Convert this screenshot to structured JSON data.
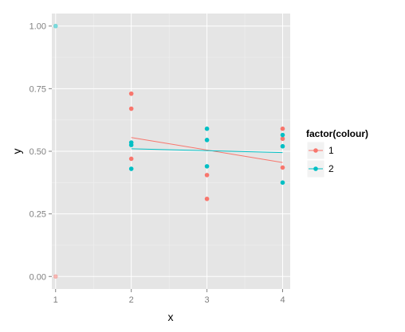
{
  "chart_data": {
    "type": "scatter",
    "xlabel": "x",
    "ylabel": "y",
    "xlim": [
      0.95,
      4.1
    ],
    "ylim": [
      -0.05,
      1.05
    ],
    "x_ticks": [
      1,
      2,
      3,
      4
    ],
    "x_tick_labels": [
      "1",
      "2",
      "3",
      "4"
    ],
    "y_ticks": [
      0,
      0.25,
      0.5,
      0.75,
      1
    ],
    "y_tick_labels": [
      "0.00",
      "0.25",
      "0.50",
      "0.75",
      "1.00"
    ],
    "grid": true,
    "panel_background": "#e5e5e5",
    "legend": {
      "title": "factor(colour)",
      "position": "right",
      "entries": [
        {
          "label": "1",
          "color": "#f8766d"
        },
        {
          "label": "2",
          "color": "#00bfc4"
        }
      ]
    },
    "series": [
      {
        "name": "1",
        "color": "#f8766d",
        "points": [
          {
            "x": 1,
            "y": 0.0,
            "alpha": 0.5
          },
          {
            "x": 2,
            "y": 0.73
          },
          {
            "x": 2,
            "y": 0.67
          },
          {
            "x": 2,
            "y": 0.47
          },
          {
            "x": 3,
            "y": 0.405
          },
          {
            "x": 3,
            "y": 0.31
          },
          {
            "x": 4,
            "y": 0.59
          },
          {
            "x": 4,
            "y": 0.55
          },
          {
            "x": 4,
            "y": 0.435
          }
        ],
        "fit_line": [
          {
            "x": 2,
            "y": 0.555
          },
          {
            "x": 4,
            "y": 0.455
          }
        ]
      },
      {
        "name": "2",
        "color": "#00bfc4",
        "points": [
          {
            "x": 1,
            "y": 1.0,
            "alpha": 0.5
          },
          {
            "x": 2,
            "y": 0.535
          },
          {
            "x": 2,
            "y": 0.525
          },
          {
            "x": 2,
            "y": 0.43
          },
          {
            "x": 3,
            "y": 0.59
          },
          {
            "x": 3,
            "y": 0.545
          },
          {
            "x": 3,
            "y": 0.44
          },
          {
            "x": 4,
            "y": 0.565
          },
          {
            "x": 4,
            "y": 0.52
          },
          {
            "x": 4,
            "y": 0.375
          }
        ],
        "fit_line": [
          {
            "x": 2,
            "y": 0.51
          },
          {
            "x": 4,
            "y": 0.495
          }
        ]
      }
    ]
  }
}
